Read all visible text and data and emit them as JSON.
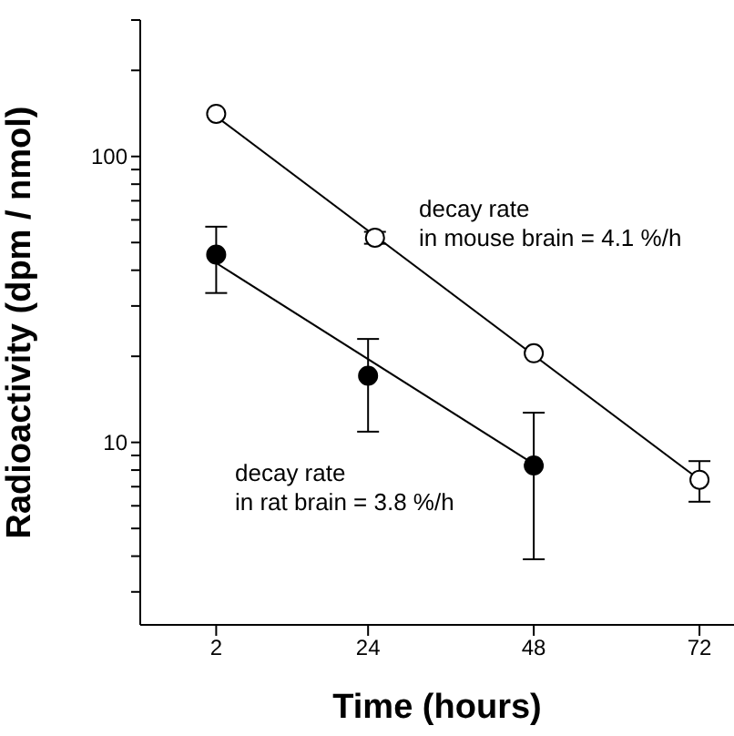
{
  "chart_data": {
    "type": "scatter",
    "xlabel": "Time (hours)",
    "ylabel": "Radioactivity (dpm / nmol)",
    "xlim": [
      -9,
      77
    ],
    "xticks": [
      2,
      24,
      48,
      72
    ],
    "ylim": [
      2.3,
      300
    ],
    "yticks": [
      {
        "value": 3,
        "label": null
      },
      {
        "value": 4,
        "label": null
      },
      {
        "value": 5,
        "label": null
      },
      {
        "value": 6,
        "label": null
      },
      {
        "value": 7,
        "label": null
      },
      {
        "value": 8,
        "label": null
      },
      {
        "value": 9,
        "label": null
      },
      10,
      {
        "value": 20,
        "label": null
      },
      {
        "value": 30,
        "label": null
      },
      {
        "value": 40,
        "label": null
      },
      {
        "value": 50,
        "label": null
      },
      {
        "value": 60,
        "label": null
      },
      {
        "value": 70,
        "label": null
      },
      {
        "value": 80,
        "label": null
      },
      {
        "value": 90,
        "label": null
      },
      100,
      {
        "value": 200,
        "label": null
      },
      {
        "value": 300,
        "label": null
      }
    ],
    "log": "y",
    "series": [
      {
        "marker": "circle",
        "color": "#ffffff",
        "x": [
          2,
          25,
          48,
          72
        ],
        "values": [
          141,
          52,
          20.5,
          7.4
        ],
        "errors": [
          null,
          [
            49.5,
            54.5
          ],
          null,
          [
            6.2,
            8.6
          ]
        ]
      },
      {
        "marker": "circle",
        "color": "#000000",
        "x": [
          2,
          24,
          48
        ],
        "values": [
          45.4,
          17.1,
          8.3
        ],
        "errors": [
          [
            33.3,
            56.8
          ],
          [
            10.9,
            23
          ],
          [
            3.9,
            12.7
          ]
        ]
      },
      {
        "type": "line",
        "marker": "none",
        "color": "#000000",
        "x": [
          2,
          72
        ],
        "values": [
          138,
          7.4
        ]
      },
      {
        "type": "line",
        "marker": "none",
        "color": "#000000",
        "x": [
          2,
          48
        ],
        "values": [
          42.4,
          8.4
        ]
      }
    ],
    "annotations": [
      "decay rate\nin mouse brain = 4.1 %/h",
      "decay rate\nin rat brain = 3.8 %/h"
    ]
  }
}
